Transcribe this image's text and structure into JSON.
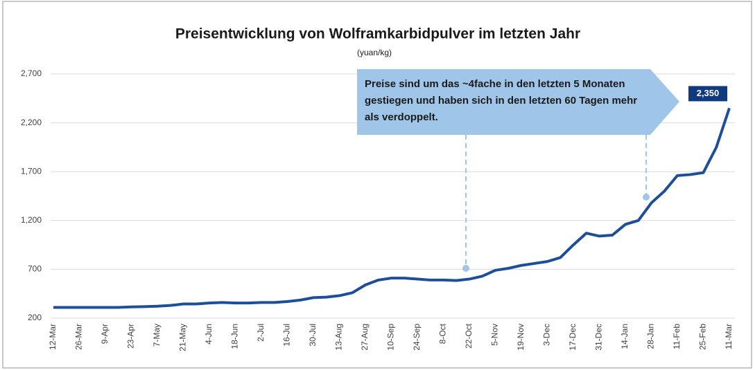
{
  "chart_data": {
    "type": "line",
    "title": "Preisentwicklung von Wolframkarbidpulver im letzten Jahr",
    "subtitle": "(yuan/kg)",
    "annotation": "Preise sind um das ~4fache in den letzten 5 Monaten gestiegen und haben sich in den letzten 60 Tagen mehr als verdoppelt.",
    "categories": [
      "12-Mar",
      null,
      "26-Mar",
      null,
      "9-Apr",
      null,
      "23-Apr",
      null,
      "7-May",
      null,
      "21-May",
      null,
      "4-Jun",
      null,
      "18-Jun",
      null,
      "2-Jul",
      null,
      "16-Jul",
      null,
      "30-Jul",
      null,
      "13-Aug",
      null,
      "27-Aug",
      null,
      "10-Sep",
      null,
      "24-Sep",
      null,
      "8-Oct",
      null,
      "22-Oct",
      null,
      "5-Nov",
      null,
      "19-Nov",
      null,
      "3-Dec",
      null,
      "17-Dec",
      null,
      "31-Dec",
      null,
      "14-Jan",
      null,
      "28-Jan",
      null,
      "11-Feb",
      null,
      "25-Feb",
      null,
      "11-Mar"
    ],
    "values": [
      310,
      310,
      310,
      310,
      310,
      310,
      315,
      318,
      322,
      330,
      345,
      345,
      355,
      360,
      355,
      355,
      360,
      360,
      370,
      385,
      410,
      415,
      430,
      460,
      540,
      590,
      610,
      610,
      600,
      590,
      590,
      585,
      600,
      630,
      690,
      710,
      740,
      760,
      780,
      820,
      950,
      1070,
      1040,
      1050,
      1160,
      1200,
      1380,
      1500,
      1660,
      1670,
      1690,
      1950,
      2350
    ],
    "value_labels": [
      null,
      null,
      null,
      null,
      null,
      null,
      null,
      null,
      null,
      null,
      null,
      null,
      null,
      null,
      null,
      null,
      null,
      null,
      null,
      null,
      null,
      null,
      null,
      null,
      null,
      null,
      null,
      null,
      null,
      null,
      null,
      null,
      null,
      null,
      null,
      null,
      null,
      null,
      null,
      null,
      null,
      null,
      null,
      null,
      null,
      null,
      null,
      null,
      null,
      null,
      null,
      null,
      "2,350"
    ],
    "color": "#1f4e99",
    "ylim": [
      200,
      2700
    ],
    "yticks": [
      200,
      700,
      {
        "value": 1200,
        "label": "1,200"
      },
      {
        "value": 1700,
        "label": "1,700"
      },
      {
        "value": 2200,
        "label": "2,200"
      },
      {
        "value": 2700,
        "label": "2,700"
      }
    ],
    "grid": true
  }
}
